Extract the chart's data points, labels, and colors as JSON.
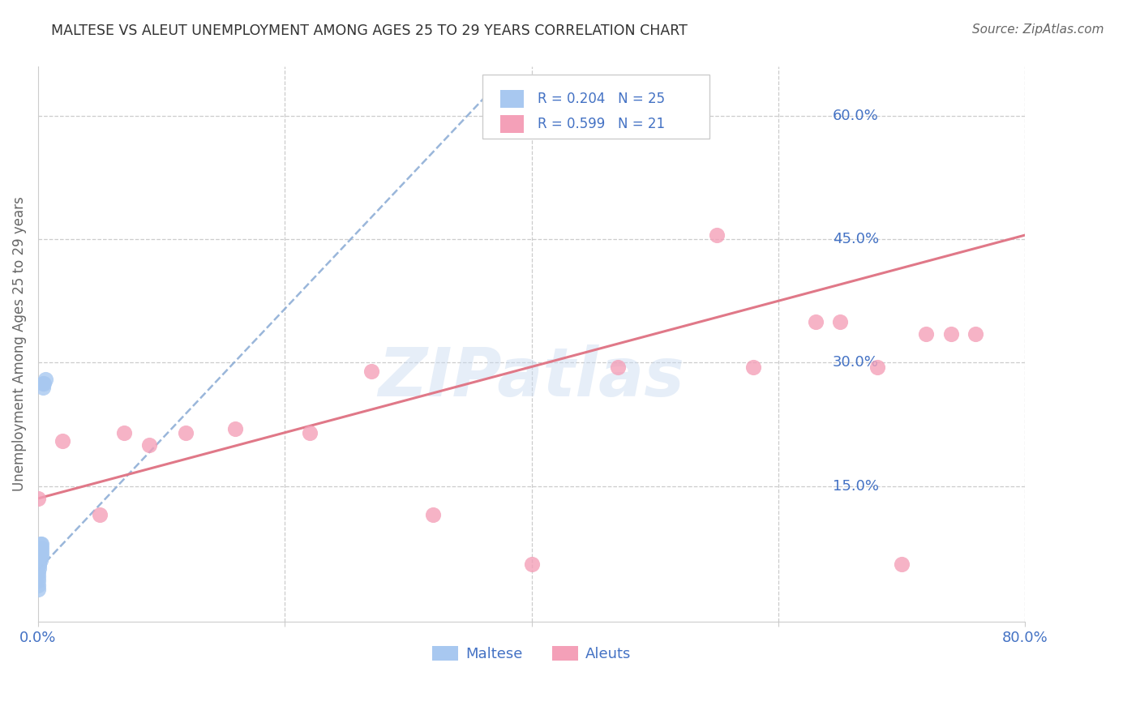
{
  "title": "MALTESE VS ALEUT UNEMPLOYMENT AMONG AGES 25 TO 29 YEARS CORRELATION CHART",
  "source_text": "Source: ZipAtlas.com",
  "ylabel": "Unemployment Among Ages 25 to 29 years",
  "xlim": [
    0.0,
    0.8
  ],
  "ylim": [
    -0.015,
    0.66
  ],
  "ytick_positions": [
    0.15,
    0.3,
    0.45,
    0.6
  ],
  "ytick_labels": [
    "15.0%",
    "30.0%",
    "45.0%",
    "60.0%"
  ],
  "legend_r1": "R = 0.204",
  "legend_n1": "N = 25",
  "legend_r2": "R = 0.599",
  "legend_n2": "N = 21",
  "legend_label1": "Maltese",
  "legend_label2": "Aleuts",
  "watermark": "ZIPatlas",
  "maltese_color": "#a8c8f0",
  "aleut_color": "#f4a0b8",
  "maltese_trend_color": "#88aad4",
  "aleut_trend_color": "#e07888",
  "maltese_x": [
    0.0,
    0.0,
    0.0,
    0.0,
    0.0,
    0.001,
    0.001,
    0.001,
    0.001,
    0.001,
    0.001,
    0.001,
    0.002,
    0.002,
    0.002,
    0.002,
    0.002,
    0.003,
    0.003,
    0.003,
    0.003,
    0.004,
    0.004,
    0.005,
    0.006
  ],
  "maltese_y": [
    0.025,
    0.03,
    0.035,
    0.04,
    0.045,
    0.05,
    0.055,
    0.055,
    0.06,
    0.06,
    0.065,
    0.07,
    0.06,
    0.065,
    0.07,
    0.075,
    0.08,
    0.065,
    0.07,
    0.075,
    0.08,
    0.27,
    0.275,
    0.275,
    0.28
  ],
  "aleut_x": [
    0.0,
    0.02,
    0.05,
    0.07,
    0.09,
    0.12,
    0.16,
    0.22,
    0.27,
    0.32,
    0.4,
    0.47,
    0.55,
    0.58,
    0.63,
    0.65,
    0.68,
    0.7,
    0.72,
    0.74,
    0.76
  ],
  "aleut_y": [
    0.135,
    0.205,
    0.115,
    0.215,
    0.2,
    0.215,
    0.22,
    0.215,
    0.29,
    0.115,
    0.055,
    0.295,
    0.455,
    0.295,
    0.35,
    0.35,
    0.295,
    0.055,
    0.335,
    0.335,
    0.335
  ],
  "maltese_trend_x0": 0.0,
  "maltese_trend_y0": 0.048,
  "maltese_trend_x1": 0.37,
  "maltese_trend_y1": 0.635,
  "aleut_trend_x0": 0.0,
  "aleut_trend_y0": 0.135,
  "aleut_trend_x1": 0.8,
  "aleut_trend_y1": 0.455,
  "bg_color": "#ffffff",
  "grid_color": "#cccccc",
  "title_color": "#333333",
  "axis_color": "#4472c4",
  "text_color": "#666666"
}
